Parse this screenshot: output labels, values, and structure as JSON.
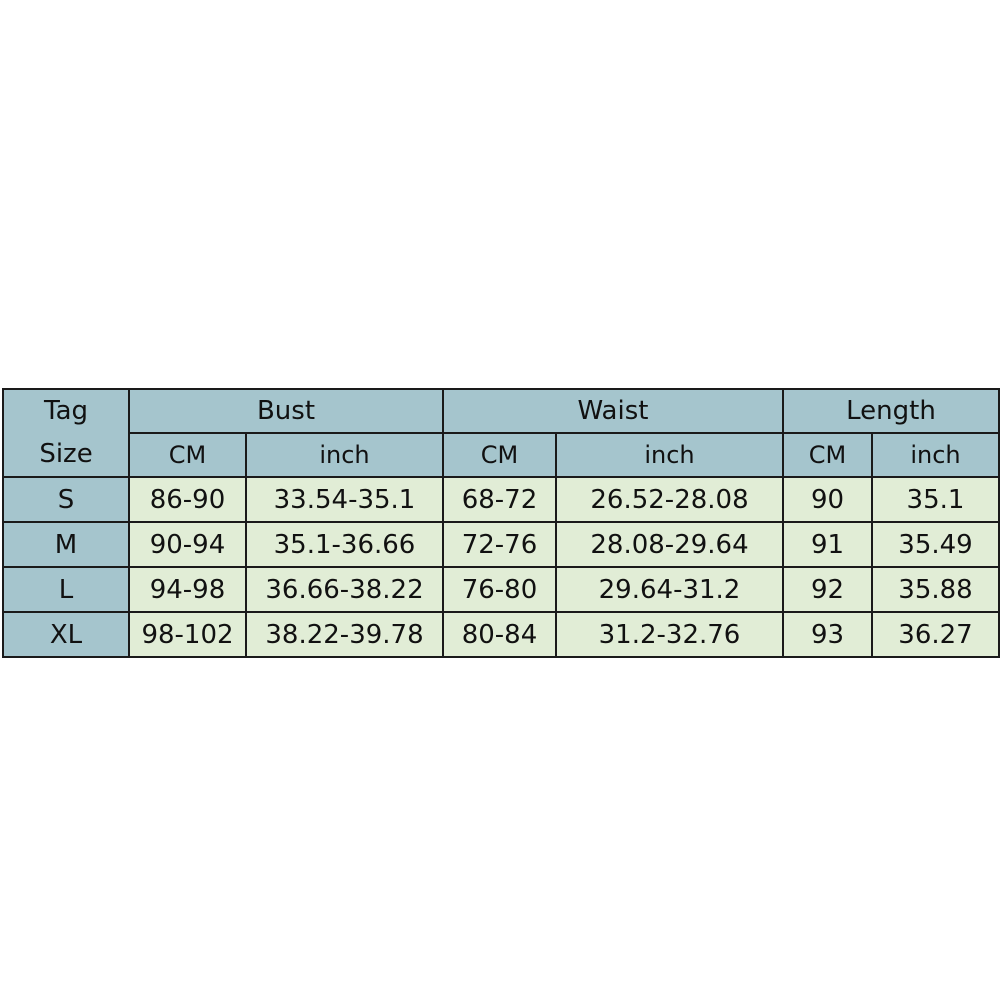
{
  "table": {
    "tag_size_label": [
      "Tag",
      "Size"
    ],
    "groups": [
      "Bust",
      "Waist",
      "Length"
    ],
    "units": [
      "CM",
      "inch",
      "CM",
      "inch",
      "CM",
      "inch"
    ],
    "rows": [
      {
        "size": "S",
        "values": [
          "86-90",
          "33.54-35.1",
          "68-72",
          "26.52-28.08",
          "90",
          "35.1"
        ]
      },
      {
        "size": "M",
        "values": [
          "90-94",
          "35.1-36.66",
          "72-76",
          "28.08-29.64",
          "91",
          "35.49"
        ]
      },
      {
        "size": "L",
        "values": [
          "94-98",
          "36.66-38.22",
          "76-80",
          "29.64-31.2",
          "92",
          "35.88"
        ]
      },
      {
        "size": "XL",
        "values": [
          "98-102",
          "38.22-39.78",
          "80-84",
          "31.2-32.76",
          "93",
          "36.27"
        ]
      }
    ],
    "colors": {
      "header": "#a5c5cd",
      "cell": "#e1edd6",
      "border": "#1a1a1a"
    }
  }
}
